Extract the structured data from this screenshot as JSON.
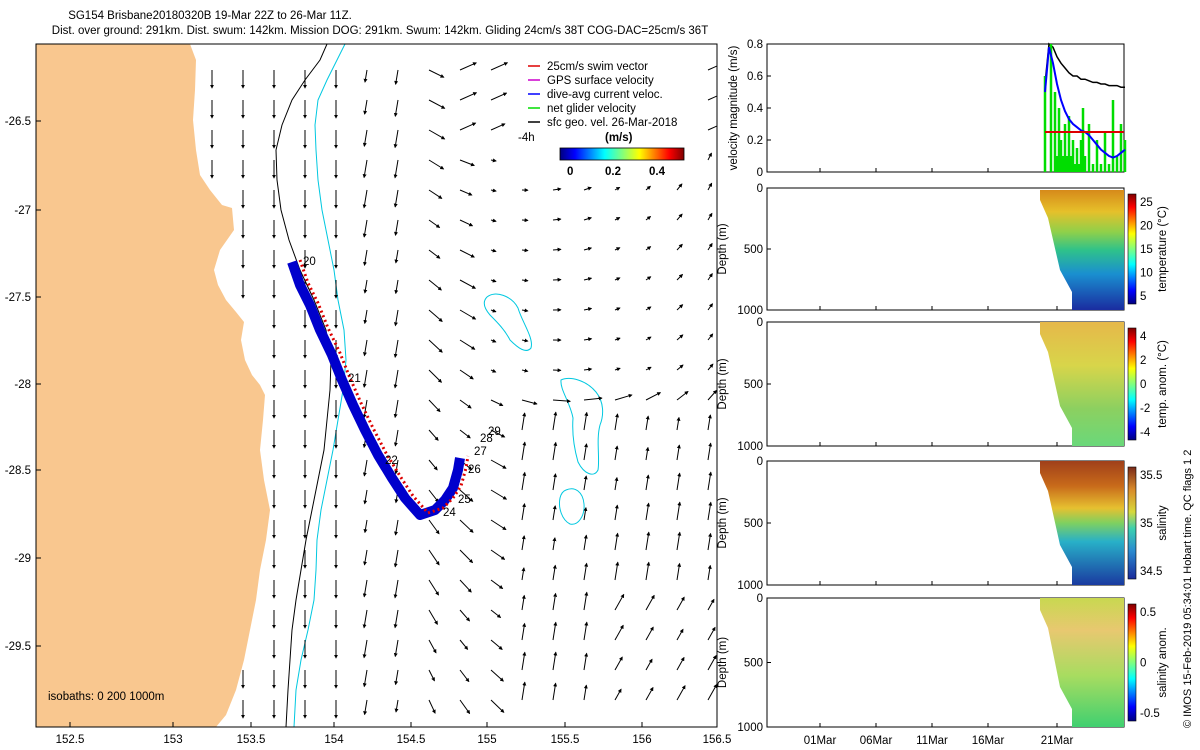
{
  "header": {
    "title_line1": "SG154 Brisbane20180320B 19-Mar 22Z to 26-Mar 11Z.",
    "title_line2": "Dist. over ground: 291km. Dist. swum: 142km. Mission DOG: 291km. Swum: 142km. Gliding 24cm/s 38T COG-DAC=25cm/s 36T"
  },
  "map": {
    "lat_ticks": [
      "-26.5",
      "-27",
      "-27.5",
      "-28",
      "-28.5",
      "-29",
      "-29.5"
    ],
    "lon_ticks": [
      "152.5",
      "153",
      "153.5",
      "154",
      "154.5",
      "155",
      "155.5",
      "156",
      "156.5"
    ],
    "colors": {
      "land": "#f9c78f",
      "track": "#0000cc",
      "swim": "#dd0000",
      "isobath_200": "#000000",
      "isobath_1000": "#00c8e0"
    },
    "isobath_label": "isobaths: 0   200  1000m",
    "track_labels": [
      "20",
      "21",
      "22",
      "24",
      "25",
      "26",
      "27",
      "28",
      "29"
    ],
    "legend": {
      "items": [
        {
          "label": "25cm/s swim vector",
          "color": "#dd0000"
        },
        {
          "label": "GPS surface velocity",
          "color": "#cc00cc"
        },
        {
          "label": "dive-avg current veloc.",
          "color": "#0000ff"
        },
        {
          "label": "net glider velocity",
          "color": "#00dd00"
        },
        {
          "label": "sfc geo. vel. 26-Mar-2018",
          "color": "#000000"
        }
      ],
      "hour_label": "-4h",
      "unit_label": "(m/s)",
      "colorbar_ticks": [
        "0",
        "0.2",
        "0.4"
      ]
    }
  },
  "side_panels": {
    "velocity": {
      "ylabel": "velocity magnitude (m/s)",
      "yticks": [
        "0",
        "0.2",
        "0.4",
        "0.6",
        "0.8"
      ]
    },
    "temperature": {
      "ylabel": "Depth (m)",
      "yticks": [
        "0",
        "500",
        "1000"
      ],
      "cbar_label": "temperature (°C)",
      "cbar_ticks": [
        "25",
        "20",
        "15",
        "10",
        "5"
      ]
    },
    "temp_anom": {
      "ylabel": "Depth (m)",
      "yticks": [
        "0",
        "500",
        "1000"
      ],
      "cbar_label": "temp. anom. (°C)",
      "cbar_ticks": [
        "4",
        "2",
        "0",
        "-2",
        "-4"
      ]
    },
    "salinity": {
      "ylabel": "Depth (m)",
      "yticks": [
        "0",
        "500",
        "1000"
      ],
      "cbar_label": "salinity",
      "cbar_ticks": [
        "35.5",
        "35",
        "34.5"
      ]
    },
    "salinity_anom": {
      "ylabel": "Depth (m)",
      "yticks": [
        "0",
        "500",
        "1000"
      ],
      "cbar_label": "salinity anom.",
      "cbar_ticks": [
        "0.5",
        "0",
        "-0.5"
      ]
    },
    "x_ticks": [
      "01Mar",
      "06Mar",
      "11Mar",
      "16Mar",
      "21Mar"
    ]
  },
  "footer": "© IMOS 15-Feb-2019 05:34:01 Hobart time. QC flags 1  2"
}
